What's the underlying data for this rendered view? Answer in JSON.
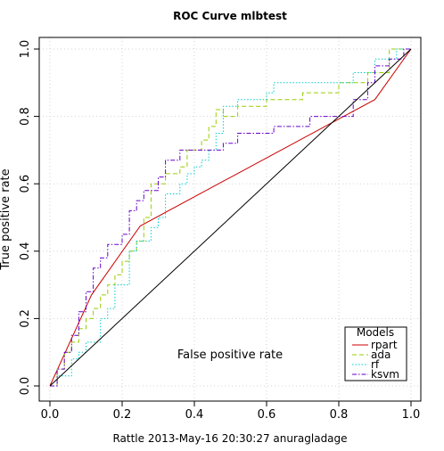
{
  "chart_data": {
    "type": "line",
    "title": "ROC Curve  mlbtest",
    "xlabel": "False positive rate",
    "ylabel": "True positive rate",
    "xlim": [
      0,
      1
    ],
    "ylim": [
      0,
      1
    ],
    "xticks": [
      "0.0",
      "0.2",
      "0.4",
      "0.6",
      "0.8",
      "1.0"
    ],
    "yticks": [
      "0.0",
      "0.2",
      "0.4",
      "0.6",
      "0.8",
      "1.0"
    ],
    "grid": true,
    "legend": {
      "title": "Models",
      "position": "bottom-right"
    },
    "series": [
      {
        "name": "rpart",
        "color": "#cc0000",
        "dash": "solid",
        "points": [
          [
            0,
            0
          ],
          [
            0.115,
            0.27
          ],
          [
            0.25,
            0.475
          ],
          [
            0.9,
            0.85
          ],
          [
            1,
            1
          ]
        ]
      },
      {
        "name": "ada",
        "color": "#99cc00",
        "dash": "dashed",
        "points": [
          [
            0,
            0
          ],
          [
            0.02,
            0
          ],
          [
            0.02,
            0.05
          ],
          [
            0.04,
            0.05
          ],
          [
            0.04,
            0.1
          ],
          [
            0.06,
            0.1
          ],
          [
            0.06,
            0.13
          ],
          [
            0.08,
            0.13
          ],
          [
            0.08,
            0.17
          ],
          [
            0.1,
            0.17
          ],
          [
            0.1,
            0.2
          ],
          [
            0.12,
            0.2
          ],
          [
            0.12,
            0.23
          ],
          [
            0.14,
            0.23
          ],
          [
            0.14,
            0.27
          ],
          [
            0.16,
            0.27
          ],
          [
            0.16,
            0.3
          ],
          [
            0.18,
            0.3
          ],
          [
            0.18,
            0.33
          ],
          [
            0.2,
            0.33
          ],
          [
            0.2,
            0.37
          ],
          [
            0.22,
            0.37
          ],
          [
            0.22,
            0.4
          ],
          [
            0.24,
            0.4
          ],
          [
            0.24,
            0.43
          ],
          [
            0.26,
            0.43
          ],
          [
            0.26,
            0.5
          ],
          [
            0.28,
            0.5
          ],
          [
            0.28,
            0.6
          ],
          [
            0.32,
            0.6
          ],
          [
            0.32,
            0.63
          ],
          [
            0.36,
            0.63
          ],
          [
            0.36,
            0.65
          ],
          [
            0.38,
            0.65
          ],
          [
            0.38,
            0.7
          ],
          [
            0.42,
            0.7
          ],
          [
            0.42,
            0.73
          ],
          [
            0.44,
            0.73
          ],
          [
            0.44,
            0.77
          ],
          [
            0.46,
            0.77
          ],
          [
            0.46,
            0.82
          ],
          [
            0.48,
            0.82
          ],
          [
            0.48,
            0.8
          ],
          [
            0.52,
            0.8
          ],
          [
            0.52,
            0.83
          ],
          [
            0.6,
            0.83
          ],
          [
            0.6,
            0.85
          ],
          [
            0.7,
            0.85
          ],
          [
            0.7,
            0.87
          ],
          [
            0.8,
            0.87
          ],
          [
            0.8,
            0.9
          ],
          [
            0.88,
            0.9
          ],
          [
            0.88,
            0.93
          ],
          [
            0.94,
            0.93
          ],
          [
            0.94,
            1
          ],
          [
            1,
            1
          ]
        ]
      },
      {
        "name": "rf",
        "color": "#00cccc",
        "dash": "dotted",
        "points": [
          [
            0,
            0
          ],
          [
            0.02,
            0
          ],
          [
            0.02,
            0.03
          ],
          [
            0.06,
            0.03
          ],
          [
            0.06,
            0.08
          ],
          [
            0.08,
            0.08
          ],
          [
            0.08,
            0.1
          ],
          [
            0.1,
            0.1
          ],
          [
            0.1,
            0.13
          ],
          [
            0.14,
            0.13
          ],
          [
            0.14,
            0.2
          ],
          [
            0.16,
            0.2
          ],
          [
            0.16,
            0.23
          ],
          [
            0.18,
            0.23
          ],
          [
            0.18,
            0.3
          ],
          [
            0.22,
            0.3
          ],
          [
            0.22,
            0.4
          ],
          [
            0.24,
            0.4
          ],
          [
            0.24,
            0.43
          ],
          [
            0.28,
            0.43
          ],
          [
            0.28,
            0.47
          ],
          [
            0.3,
            0.47
          ],
          [
            0.3,
            0.5
          ],
          [
            0.32,
            0.5
          ],
          [
            0.32,
            0.57
          ],
          [
            0.36,
            0.57
          ],
          [
            0.36,
            0.6
          ],
          [
            0.38,
            0.6
          ],
          [
            0.38,
            0.63
          ],
          [
            0.4,
            0.63
          ],
          [
            0.4,
            0.65
          ],
          [
            0.42,
            0.65
          ],
          [
            0.42,
            0.67
          ],
          [
            0.44,
            0.67
          ],
          [
            0.44,
            0.7
          ],
          [
            0.46,
            0.7
          ],
          [
            0.46,
            0.75
          ],
          [
            0.48,
            0.75
          ],
          [
            0.48,
            0.83
          ],
          [
            0.52,
            0.83
          ],
          [
            0.52,
            0.85
          ],
          [
            0.6,
            0.85
          ],
          [
            0.6,
            0.87
          ],
          [
            0.62,
            0.87
          ],
          [
            0.62,
            0.9
          ],
          [
            0.84,
            0.9
          ],
          [
            0.84,
            0.93
          ],
          [
            0.9,
            0.93
          ],
          [
            0.9,
            0.97
          ],
          [
            0.96,
            0.97
          ],
          [
            0.96,
            1
          ],
          [
            1,
            1
          ]
        ]
      },
      {
        "name": "ksvm",
        "color": "#6600cc",
        "dash": "dashdot",
        "points": [
          [
            0,
            0
          ],
          [
            0.02,
            0
          ],
          [
            0.02,
            0.05
          ],
          [
            0.04,
            0.05
          ],
          [
            0.04,
            0.1
          ],
          [
            0.06,
            0.1
          ],
          [
            0.06,
            0.15
          ],
          [
            0.08,
            0.15
          ],
          [
            0.08,
            0.22
          ],
          [
            0.1,
            0.22
          ],
          [
            0.1,
            0.28
          ],
          [
            0.12,
            0.28
          ],
          [
            0.12,
            0.35
          ],
          [
            0.14,
            0.35
          ],
          [
            0.14,
            0.38
          ],
          [
            0.16,
            0.38
          ],
          [
            0.16,
            0.42
          ],
          [
            0.2,
            0.42
          ],
          [
            0.2,
            0.45
          ],
          [
            0.22,
            0.45
          ],
          [
            0.22,
            0.52
          ],
          [
            0.24,
            0.52
          ],
          [
            0.24,
            0.55
          ],
          [
            0.26,
            0.55
          ],
          [
            0.26,
            0.58
          ],
          [
            0.3,
            0.58
          ],
          [
            0.3,
            0.62
          ],
          [
            0.32,
            0.62
          ],
          [
            0.32,
            0.67
          ],
          [
            0.36,
            0.67
          ],
          [
            0.36,
            0.7
          ],
          [
            0.48,
            0.7
          ],
          [
            0.48,
            0.72
          ],
          [
            0.52,
            0.72
          ],
          [
            0.52,
            0.75
          ],
          [
            0.62,
            0.75
          ],
          [
            0.62,
            0.77
          ],
          [
            0.72,
            0.77
          ],
          [
            0.72,
            0.8
          ],
          [
            0.84,
            0.8
          ],
          [
            0.84,
            0.85
          ],
          [
            0.88,
            0.85
          ],
          [
            0.88,
            0.9
          ],
          [
            0.9,
            0.9
          ],
          [
            0.9,
            0.95
          ],
          [
            0.94,
            0.95
          ],
          [
            0.94,
            0.97
          ],
          [
            0.98,
            0.97
          ],
          [
            0.98,
            1
          ],
          [
            1,
            1
          ]
        ]
      },
      {
        "name": "",
        "color": "#000000",
        "dash": "solid",
        "points": [
          [
            0,
            0
          ],
          [
            1,
            1
          ]
        ]
      }
    ]
  },
  "footer": {
    "text": "Rattle 2013-May-16 20:30:27 anuragladage"
  }
}
